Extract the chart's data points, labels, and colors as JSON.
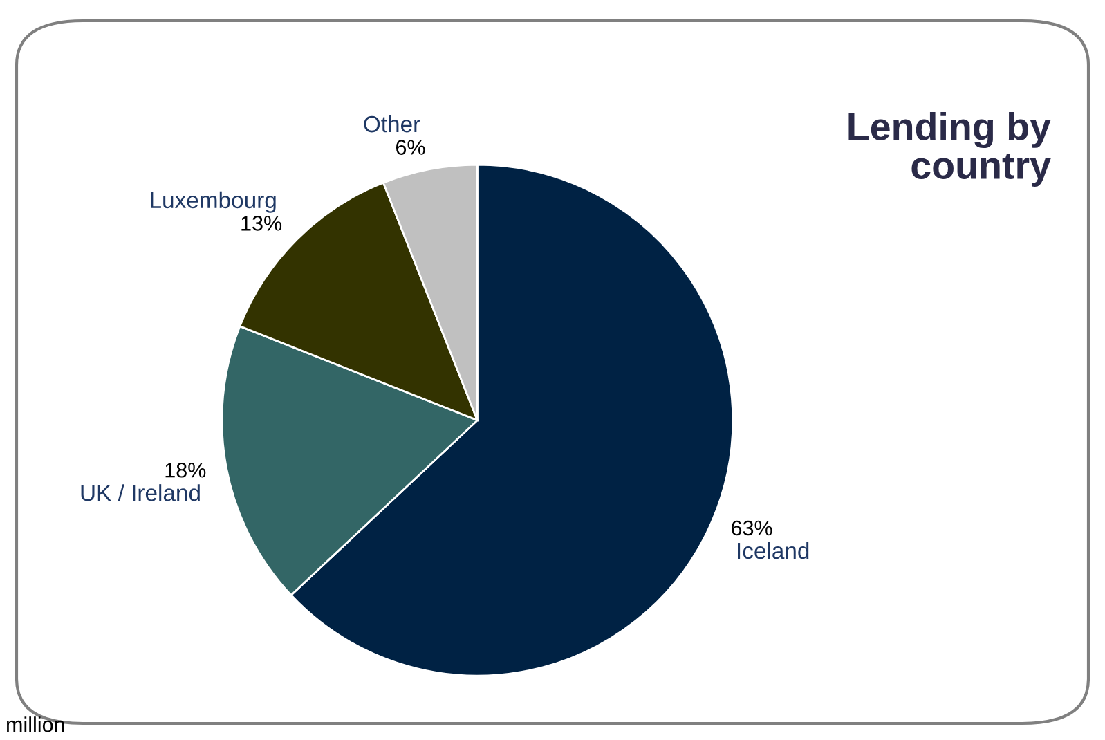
{
  "chart_data": {
    "type": "pie",
    "title": "Lending by\ncountry",
    "categories": [
      "Iceland",
      "UK / Ireland",
      "Luxembourg",
      "Other"
    ],
    "values": [
      63,
      18,
      13,
      6
    ],
    "colors": [
      "#002244",
      "#336666",
      "#333300",
      "#c0c0c0"
    ],
    "value_labels": [
      "63%",
      "18%",
      "13%",
      "6%"
    ],
    "annotations": [
      "million"
    ]
  }
}
